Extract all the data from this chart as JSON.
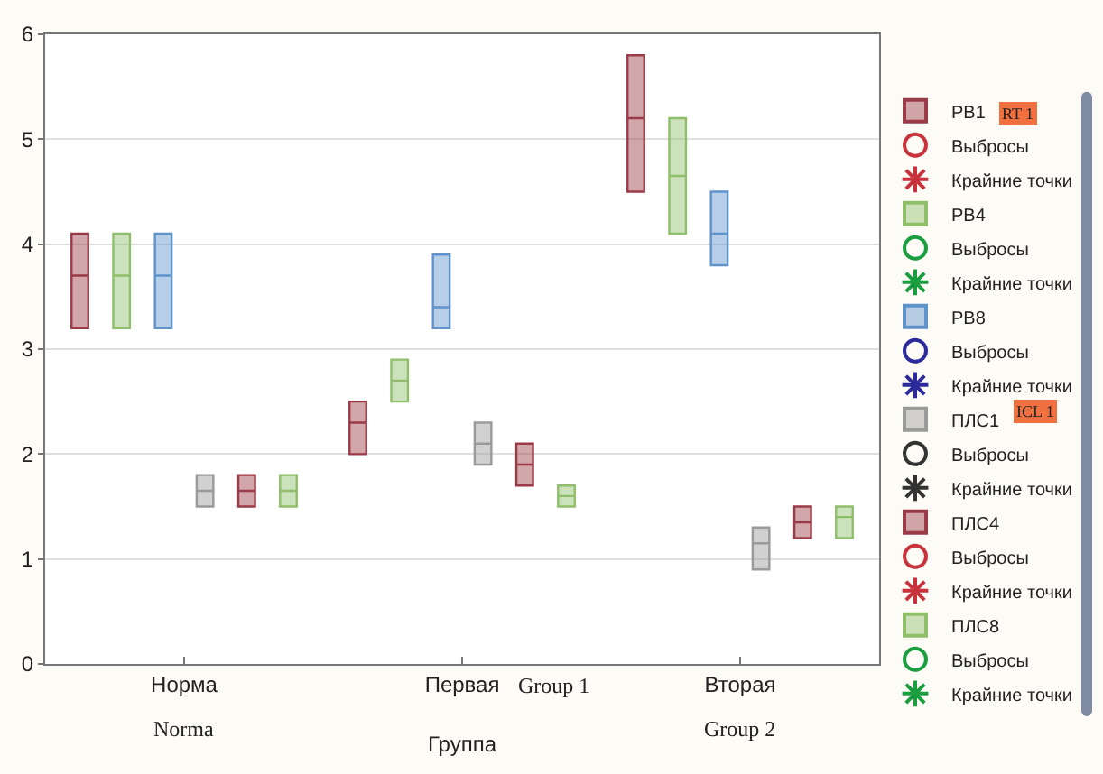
{
  "chart_data": {
    "type": "box",
    "xlabel": "Группа",
    "categories": [
      "Норма",
      "Первая",
      "Вторая"
    ],
    "ylim": [
      0,
      6
    ],
    "yticks": [
      0,
      1,
      2,
      3,
      4,
      5,
      6
    ],
    "grid": "y",
    "legend": "right",
    "annotations": [
      "Norma",
      "Group 1",
      "Group 2",
      "RT 1",
      "ICL 1"
    ],
    "series": [
      {
        "name": "РВ1",
        "color": "#9b3b48",
        "boxes": [
          {
            "low": 3.2,
            "q1": 3.2,
            "median": 3.7,
            "q3": 4.1,
            "high": 4.1
          },
          {
            "low": 2.0,
            "q1": 2.0,
            "median": 2.3,
            "q3": 2.5,
            "high": 2.5
          },
          {
            "low": 4.5,
            "q1": 4.5,
            "median": 5.2,
            "q3": 5.8,
            "high": 5.8
          }
        ]
      },
      {
        "name": "Выбросы",
        "type": "scatter",
        "marker": "circle",
        "color": "#c8333b",
        "values": [
          null,
          null,
          null
        ]
      },
      {
        "name": "Крайние точки",
        "type": "scatter",
        "marker": "star",
        "color": "#c8333b",
        "values": [
          null,
          null,
          null
        ]
      },
      {
        "name": "РВ4",
        "color": "#8fbf6a",
        "boxes": [
          {
            "low": 3.2,
            "q1": 3.2,
            "median": 3.7,
            "q3": 4.1,
            "high": 4.1
          },
          {
            "low": 2.5,
            "q1": 2.5,
            "median": 2.7,
            "q3": 2.9,
            "high": 2.9
          },
          {
            "low": 4.1,
            "q1": 4.1,
            "median": 4.65,
            "q3": 5.2,
            "high": 5.2
          }
        ]
      },
      {
        "name": "Выбросы",
        "type": "scatter",
        "marker": "circle",
        "color": "#1a9e40",
        "values": [
          null,
          null,
          null
        ]
      },
      {
        "name": "Крайние точки",
        "type": "scatter",
        "marker": "star",
        "color": "#1a9e40",
        "values": [
          null,
          null,
          null
        ]
      },
      {
        "name": "РВ8",
        "color": "#5e93cc",
        "boxes": [
          {
            "low": 3.2,
            "q1": 3.2,
            "median": 3.7,
            "q3": 4.1,
            "high": 4.1
          },
          {
            "low": 3.2,
            "q1": 3.2,
            "median": 3.4,
            "q3": 3.9,
            "high": 3.9
          },
          {
            "low": 3.8,
            "q1": 3.8,
            "median": 4.1,
            "q3": 4.5,
            "high": 4.5
          }
        ]
      },
      {
        "name": "Выбросы",
        "type": "scatter",
        "marker": "circle",
        "color": "#2b2b9b",
        "values": [
          null,
          null,
          null
        ]
      },
      {
        "name": "Крайние точки",
        "type": "scatter",
        "marker": "star",
        "color": "#2b2b9b",
        "values": [
          null,
          null,
          null
        ]
      },
      {
        "name": "ПЛС1",
        "color": "#9a9a9a",
        "boxes": [
          {
            "low": 1.5,
            "q1": 1.5,
            "median": 1.65,
            "q3": 1.8,
            "high": 1.8
          },
          {
            "low": 1.9,
            "q1": 1.9,
            "median": 2.1,
            "q3": 2.3,
            "high": 2.3
          },
          {
            "low": 0.9,
            "q1": 0.9,
            "median": 1.15,
            "q3": 1.3,
            "high": 1.3
          }
        ]
      },
      {
        "name": "Выбросы",
        "type": "scatter",
        "marker": "circle",
        "color": "#333333",
        "values": [
          null,
          null,
          null
        ]
      },
      {
        "name": "Крайние точки",
        "type": "scatter",
        "marker": "star",
        "color": "#333333",
        "values": [
          null,
          null,
          null
        ]
      },
      {
        "name": "ПЛС4",
        "color": "#9b3b48",
        "boxes": [
          {
            "low": 1.5,
            "q1": 1.5,
            "median": 1.65,
            "q3": 1.8,
            "high": 1.8
          },
          {
            "low": 1.7,
            "q1": 1.7,
            "median": 1.9,
            "q3": 2.1,
            "high": 2.1
          },
          {
            "low": 1.2,
            "q1": 1.2,
            "median": 1.35,
            "q3": 1.5,
            "high": 1.5
          }
        ]
      },
      {
        "name": "Выбросы",
        "type": "scatter",
        "marker": "circle",
        "color": "#c8333b",
        "values": [
          null,
          null,
          null
        ]
      },
      {
        "name": "Крайние точки",
        "type": "scatter",
        "marker": "star",
        "color": "#c8333b",
        "values": [
          null,
          null,
          null
        ]
      },
      {
        "name": "ПЛС8",
        "color": "#8fbf6a",
        "boxes": [
          {
            "low": 1.5,
            "q1": 1.5,
            "median": 1.65,
            "q3": 1.8,
            "high": 1.8
          },
          {
            "low": 1.5,
            "q1": 1.5,
            "median": 1.6,
            "q3": 1.7,
            "high": 1.7
          },
          {
            "low": 1.2,
            "q1": 1.2,
            "median": 1.4,
            "q3": 1.5,
            "high": 1.5
          }
        ]
      },
      {
        "name": "Выбросы",
        "type": "scatter",
        "marker": "circle",
        "color": "#1a9e40",
        "values": [
          null,
          null,
          null
        ]
      },
      {
        "name": "Крайние точки",
        "type": "scatter",
        "marker": "star",
        "color": "#1a9e40",
        "values": [
          null,
          null,
          null
        ]
      }
    ]
  }
}
